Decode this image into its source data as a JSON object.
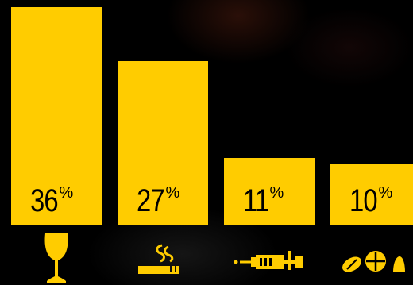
{
  "chart_data": {
    "type": "bar",
    "categories": [
      "alcohol",
      "tobacco",
      "injected drugs",
      "pills"
    ],
    "values": [
      36,
      27,
      11,
      10
    ],
    "value_labels": [
      "36",
      "27",
      "11",
      "10"
    ],
    "unit_symbol": "%",
    "ylim": [
      0,
      36
    ],
    "title": "",
    "xlabel": "",
    "ylabel": "",
    "grid": false,
    "legend": "none"
  },
  "colors": {
    "background": "#000000",
    "bar": "#FFCC00",
    "label": "#000000",
    "icon": "#FFCC00"
  },
  "icons": [
    "wine-glass-icon",
    "cigarette-icon",
    "syringe-icon",
    "pills-icon"
  ]
}
